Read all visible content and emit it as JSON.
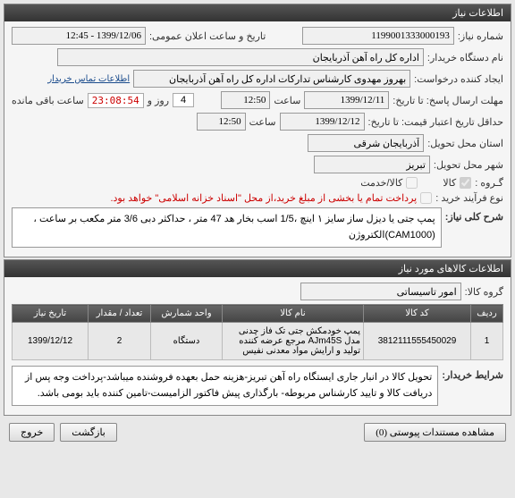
{
  "panel1": {
    "title": "اطلاعات نیاز",
    "need_no_label": "شماره نیاز:",
    "need_no": "1199001333000193",
    "announce_label": "تاریخ و ساعت اعلان عمومی:",
    "announce": "1399/12/06 - 12:45",
    "buyer_name_label": "نام دستگاه خریدار:",
    "buyer_name": "اداره کل راه آهن آذربایجان",
    "creator_label": "ایجاد کننده درخواست:",
    "creator": "بهروز مهدوی کارشناس تدارکات اداره کل راه آهن آذربایجان",
    "buyer_contact_link": "اطلاعات تماس خریدار",
    "deadline_label": "مهلت ارسال پاسخ: تا تاریخ:",
    "deadline_date": "1399/12/11",
    "time_label": "ساعت",
    "deadline_time": "12:50",
    "countdown_days": "4",
    "countdown_days_label": "روز و",
    "countdown_timer": "23:08:54",
    "countdown_tail": "ساعت باقی مانده",
    "min_valid_label": "حداقل تاریخ اعتبار قیمت: تا تاریخ:",
    "min_valid_date": "1399/12/12",
    "min_valid_time": "12:50",
    "province_label": "استان محل تحویل:",
    "province": "آذربایجان شرقی",
    "city_label": "شهر محل تحویل:",
    "city": "تبریز",
    "group_label": "گـروه :",
    "goods": "کالا",
    "goods_service": "کالا/خدمت",
    "process_label": "نوع فرآیند خرید :",
    "process_note": "پرداخت تمام یا بخشی از مبلغ خرید،از محل \"اسناد خزانه اسلامی\" خواهد بود.",
    "general_title_label": "شرح کلی نیاز:",
    "general_title": "پمپ جتی یا دیزل ساز سایز ۱ اینچ ،1/5 اسب بخار هد 47 متر ، حداکثر دبی  3/6 متر مکعب بر ساعت ، (CAM1000)الکتروژن"
  },
  "panel2": {
    "title": "اطلاعات کالاهای مورد نیاز",
    "group_label": "گروه کالا:",
    "group_value": "امور تاسیساتی",
    "cols": {
      "row": "ردیف",
      "code": "کد کالا",
      "name": "نام کالا",
      "unit": "واحد شمارش",
      "qty": "تعداد / مقدار",
      "date": "تاریخ نیاز"
    },
    "rows": [
      {
        "row": "1",
        "code": "3812111555450029",
        "name": "پمپ خودمکش جتی تک فاز چدنی مدل AJm45S مرجع عرضه کننده تولید و ارایش مواد معدنی نفیس",
        "unit": "دستگاه",
        "qty": "2",
        "date": "1399/12/12"
      }
    ],
    "buyer_cond_label": "شرایط خریدار:",
    "buyer_cond": "تحویل کالا در انبار جاری ایستگاه راه آهن تبریز-هزینه حمل بعهده فروشنده میباشد-پرداخت وجه پس از دریافت کالا و تایید کارشناس مربوطه- بارگذاری پیش فاکتور الزامیست-تامین کننده باید بومی باشد."
  },
  "footer": {
    "attachments": "مشاهده مستندات پیوستی  (0)",
    "back": "بازگشت",
    "exit": "خروج"
  }
}
